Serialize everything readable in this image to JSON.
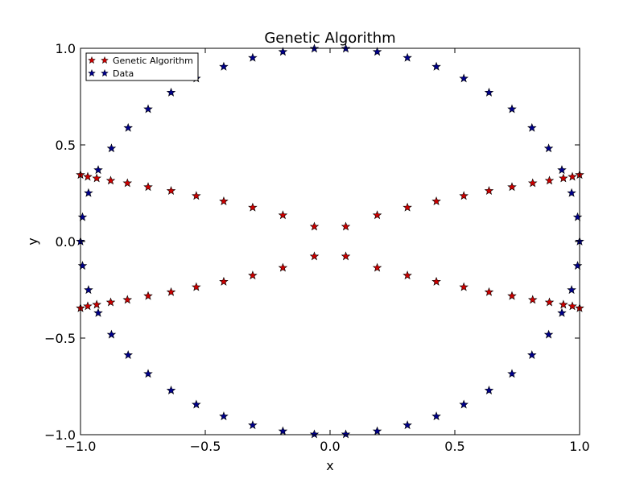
{
  "chart_data": {
    "type": "scatter",
    "title": "Genetic Algorithm",
    "xlabel": "x",
    "ylabel": "y",
    "xlim": [
      -1.0,
      1.0
    ],
    "ylim": [
      -1.0,
      1.0
    ],
    "xticks": [
      "−1.0",
      "−0.5",
      "0.0",
      "0.5",
      "1.0"
    ],
    "yticks": [
      "−1.0",
      "−0.5",
      "0.0",
      "0.5",
      "1.0"
    ],
    "grid": false,
    "legend": "top-left",
    "marker": "star",
    "series": [
      {
        "name": "Genetic Algorithm",
        "color": "#cc0000",
        "points": [
          [
            -1.0,
            0.345
          ],
          [
            -0.971,
            0.335
          ],
          [
            -0.935,
            0.327
          ],
          [
            -0.879,
            0.315
          ],
          [
            -0.812,
            0.302
          ],
          [
            -0.729,
            0.282
          ],
          [
            -0.637,
            0.262
          ],
          [
            -0.536,
            0.236
          ],
          [
            -0.426,
            0.208
          ],
          [
            -0.31,
            0.176
          ],
          [
            -0.189,
            0.136
          ],
          [
            -0.063,
            0.077
          ],
          [
            0.063,
            0.077
          ],
          [
            0.189,
            0.136
          ],
          [
            0.31,
            0.176
          ],
          [
            0.426,
            0.208
          ],
          [
            0.536,
            0.236
          ],
          [
            0.637,
            0.262
          ],
          [
            0.729,
            0.282
          ],
          [
            0.812,
            0.302
          ],
          [
            0.879,
            0.315
          ],
          [
            0.935,
            0.327
          ],
          [
            0.971,
            0.335
          ],
          [
            1.0,
            0.345
          ],
          [
            -1.0,
            -0.345
          ],
          [
            -0.971,
            -0.335
          ],
          [
            -0.935,
            -0.327
          ],
          [
            -0.879,
            -0.315
          ],
          [
            -0.812,
            -0.302
          ],
          [
            -0.729,
            -0.282
          ],
          [
            -0.637,
            -0.262
          ],
          [
            -0.536,
            -0.236
          ],
          [
            -0.426,
            -0.208
          ],
          [
            -0.31,
            -0.176
          ],
          [
            -0.189,
            -0.136
          ],
          [
            -0.063,
            -0.077
          ],
          [
            0.063,
            -0.077
          ],
          [
            0.189,
            -0.136
          ],
          [
            0.31,
            -0.176
          ],
          [
            0.426,
            -0.208
          ],
          [
            0.536,
            -0.236
          ],
          [
            0.637,
            -0.262
          ],
          [
            0.729,
            -0.282
          ],
          [
            0.812,
            -0.302
          ],
          [
            0.879,
            -0.315
          ],
          [
            0.935,
            -0.327
          ],
          [
            0.971,
            -0.335
          ],
          [
            1.0,
            -0.345
          ]
        ]
      },
      {
        "name": "Data",
        "color": "#00008b",
        "points": [
          [
            -1.0,
            0.0
          ],
          [
            -0.992,
            0.126
          ],
          [
            -0.968,
            0.251
          ],
          [
            -0.929,
            0.37
          ],
          [
            -0.876,
            0.482
          ],
          [
            -0.809,
            0.588
          ],
          [
            -0.729,
            0.685
          ],
          [
            -0.637,
            0.771
          ],
          [
            -0.536,
            0.844
          ],
          [
            -0.426,
            0.905
          ],
          [
            -0.31,
            0.951
          ],
          [
            -0.189,
            0.982
          ],
          [
            -0.063,
            0.998
          ],
          [
            0.063,
            0.998
          ],
          [
            0.189,
            0.982
          ],
          [
            0.31,
            0.951
          ],
          [
            0.426,
            0.905
          ],
          [
            0.536,
            0.844
          ],
          [
            0.637,
            0.771
          ],
          [
            0.729,
            0.685
          ],
          [
            0.809,
            0.588
          ],
          [
            0.876,
            0.482
          ],
          [
            0.929,
            0.37
          ],
          [
            0.968,
            0.251
          ],
          [
            0.992,
            0.126
          ],
          [
            1.0,
            0.0
          ],
          [
            -0.992,
            -0.126
          ],
          [
            -0.968,
            -0.251
          ],
          [
            -0.929,
            -0.37
          ],
          [
            -0.876,
            -0.482
          ],
          [
            -0.809,
            -0.588
          ],
          [
            -0.729,
            -0.685
          ],
          [
            -0.637,
            -0.771
          ],
          [
            -0.536,
            -0.844
          ],
          [
            -0.426,
            -0.905
          ],
          [
            -0.31,
            -0.951
          ],
          [
            -0.189,
            -0.982
          ],
          [
            -0.063,
            -0.998
          ],
          [
            0.063,
            -0.998
          ],
          [
            0.189,
            -0.982
          ],
          [
            0.31,
            -0.951
          ],
          [
            0.426,
            -0.905
          ],
          [
            0.536,
            -0.844
          ],
          [
            0.637,
            -0.771
          ],
          [
            0.729,
            -0.685
          ],
          [
            0.809,
            -0.588
          ],
          [
            0.876,
            -0.482
          ],
          [
            0.929,
            -0.37
          ],
          [
            0.968,
            -0.251
          ],
          [
            0.992,
            -0.126
          ]
        ]
      }
    ]
  }
}
